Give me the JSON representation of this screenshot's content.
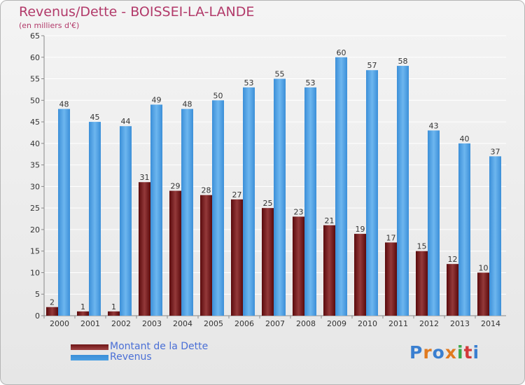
{
  "header": {
    "title": "Revenus/Dette - BOISSEI-LA-LANDE",
    "subtitle": "(en milliers d'€)"
  },
  "legend": {
    "dette_label": "Montant de la Dette",
    "revenus_label": "Revenus"
  },
  "colors": {
    "dette": "#6e1516",
    "revenus": "#4a9fe3",
    "title": "#b23a6a"
  },
  "logo": {
    "text": "Proxiti"
  },
  "chart_data": {
    "type": "bar",
    "title": "Revenus/Dette - BOISSEI-LA-LANDE",
    "ylabel": "(en milliers d'€)",
    "xlabel": "",
    "categories": [
      "2000",
      "2001",
      "2002",
      "2003",
      "2004",
      "2005",
      "2006",
      "2007",
      "2008",
      "2009",
      "2010",
      "2011",
      "2012",
      "2013",
      "2014"
    ],
    "series": [
      {
        "name": "Montant de la Dette",
        "values": [
          2,
          1,
          1,
          31,
          29,
          28,
          27,
          25,
          23,
          21,
          19,
          17,
          15,
          12,
          10
        ]
      },
      {
        "name": "Revenus",
        "values": [
          48,
          45,
          44,
          49,
          48,
          50,
          53,
          55,
          53,
          60,
          57,
          58,
          43,
          40,
          37
        ]
      }
    ],
    "ylim": [
      0,
      65
    ],
    "yticks": [
      0,
      5,
      10,
      15,
      20,
      25,
      30,
      35,
      40,
      45,
      50,
      55,
      60,
      65
    ],
    "grid": true,
    "legend_position": "bottom-left"
  }
}
